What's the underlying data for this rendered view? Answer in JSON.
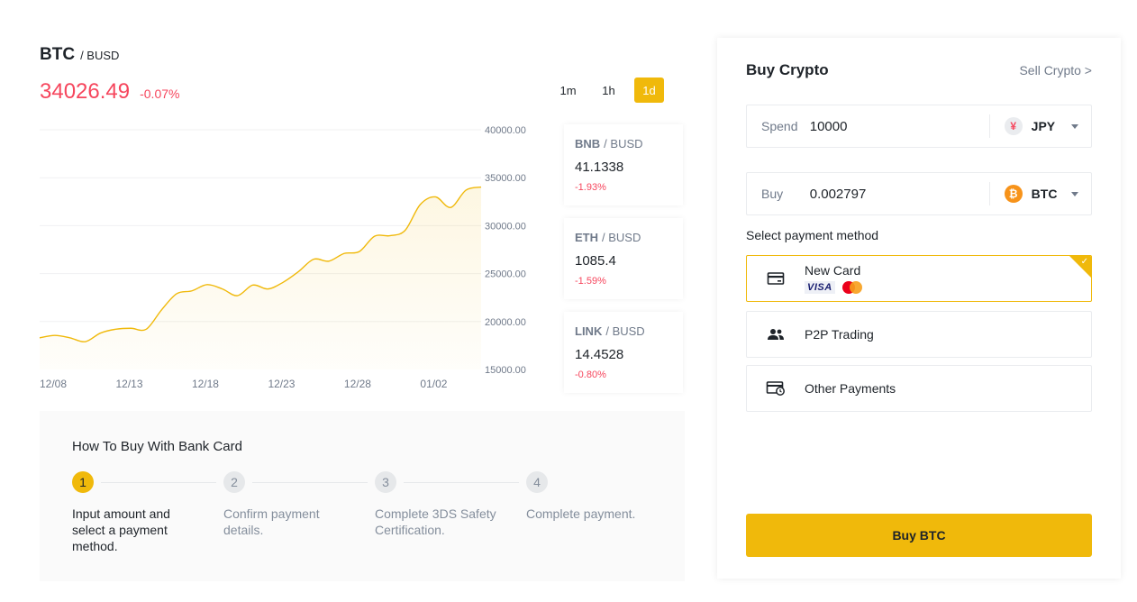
{
  "pair": {
    "base": "BTC",
    "quote": "/ BUSD",
    "price": "34026.49",
    "change": "-0.07%"
  },
  "intervals": [
    {
      "label": "1m",
      "active": false
    },
    {
      "label": "1h",
      "active": false
    },
    {
      "label": "1d",
      "active": true
    }
  ],
  "chart_data": {
    "type": "area",
    "title": "",
    "xlabel": "",
    "ylabel": "",
    "x_tick_labels": [
      "12/08",
      "12/13",
      "12/18",
      "12/23",
      "12/28",
      "01/02"
    ],
    "y_tick_labels": [
      "40000.00",
      "35000.00",
      "30000.00",
      "25000.00",
      "20000.00",
      "15000.00"
    ],
    "ylim": [
      15000,
      40000
    ],
    "grid": true,
    "color": "#f0b90b",
    "x": [
      "12/08",
      "12/09",
      "12/10",
      "12/11",
      "12/12",
      "12/13",
      "12/14",
      "12/15",
      "12/16",
      "12/17",
      "12/18",
      "12/19",
      "12/20",
      "12/21",
      "12/22",
      "12/23",
      "12/24",
      "12/25",
      "12/26",
      "12/27",
      "12/28",
      "12/29",
      "12/30",
      "12/31",
      "01/01",
      "01/02",
      "01/03",
      "01/04",
      "01/05",
      "01/06"
    ],
    "series": [
      {
        "values": [
          18300,
          18550,
          18300,
          17900,
          18800,
          19200,
          19300,
          19200,
          21200,
          22900,
          23200,
          23850,
          23400,
          22700,
          23800,
          23400,
          24100,
          25200,
          26500,
          26300,
          27100,
          27300,
          28900,
          28950,
          29500,
          32200,
          33000,
          31900,
          33700,
          34026
        ]
      }
    ]
  },
  "tickers": [
    {
      "base": "BNB",
      "quote": "/ BUSD",
      "price": "41.1338",
      "change": "-1.93%"
    },
    {
      "base": "ETH",
      "quote": "/ BUSD",
      "price": "1085.4",
      "change": "-1.59%"
    },
    {
      "base": "LINK",
      "quote": "/ BUSD",
      "price": "14.4528",
      "change": "-0.80%"
    }
  ],
  "howto": {
    "title": "How To Buy With Bank Card",
    "steps": [
      {
        "num": "1",
        "text": "Input amount and select a payment method."
      },
      {
        "num": "2",
        "text": "Confirm payment details."
      },
      {
        "num": "3",
        "text": "Complete 3DS Safety Certification."
      },
      {
        "num": "4",
        "text": "Complete payment."
      }
    ]
  },
  "buy_panel": {
    "title": "Buy Crypto",
    "sell_link": "Sell Crypto >",
    "spend": {
      "label": "Spend",
      "value": "10000",
      "currency": "JPY",
      "currency_symbol": "¥"
    },
    "buy": {
      "label": "Buy",
      "value": "0.002797",
      "currency": "BTC",
      "currency_symbol": "₿"
    },
    "payment_label": "Select payment method",
    "payment_methods": [
      {
        "label": "New Card",
        "icon": "card-icon",
        "selected": true,
        "logos": [
          "VISA",
          "Mastercard"
        ]
      },
      {
        "label": "P2P Trading",
        "icon": "users-icon",
        "selected": false
      },
      {
        "label": "Other Payments",
        "icon": "card-clock-icon",
        "selected": false
      }
    ],
    "buy_button": "Buy BTC",
    "colors": {
      "accent": "#f0b90b",
      "negative": "#f6465d"
    }
  }
}
